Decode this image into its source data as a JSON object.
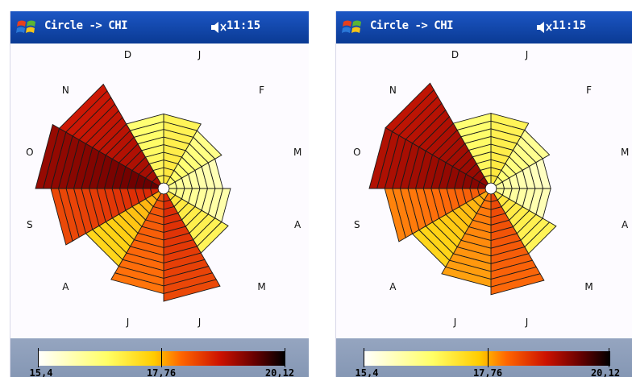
{
  "screens": [
    {
      "id": "left",
      "title": "Circle -> CHI",
      "time": "11:15",
      "months": [
        "J",
        "F",
        "M",
        "A",
        "M",
        "J",
        "J",
        "A",
        "S",
        "O",
        "N",
        "D"
      ],
      "values": [
        16.9,
        16.4,
        16.0,
        16.1,
        16.9,
        18.7,
        18.3,
        17.6,
        18.7,
        19.6,
        19.2,
        16.6
      ],
      "scale": {
        "min_label": "15,4",
        "mid_label": "17,76",
        "max_label": "20,12",
        "min": 15.4,
        "max": 20.12
      }
    },
    {
      "id": "right",
      "title": "Circle -> CHI",
      "time": "11:15",
      "months": [
        "J",
        "F",
        "M",
        "A",
        "M",
        "J",
        "J",
        "A",
        "S",
        "O",
        "N",
        "D"
      ],
      "values": [
        16.9,
        16.3,
        15.9,
        16.0,
        16.9,
        18.4,
        18.0,
        17.6,
        18.2,
        19.4,
        19.3,
        16.6
      ],
      "scale": {
        "min_label": "15,4",
        "mid_label": "17,76",
        "max_label": "20,12",
        "min": 15.4,
        "max": 20.12
      }
    }
  ],
  "icons": {
    "start": "windows-flag-icon",
    "speaker": "speaker-muted-icon"
  },
  "colors": {
    "titlebar": "#0a3d99",
    "legend_panel": "#8e9eb8",
    "ring_line": "#000000"
  }
}
